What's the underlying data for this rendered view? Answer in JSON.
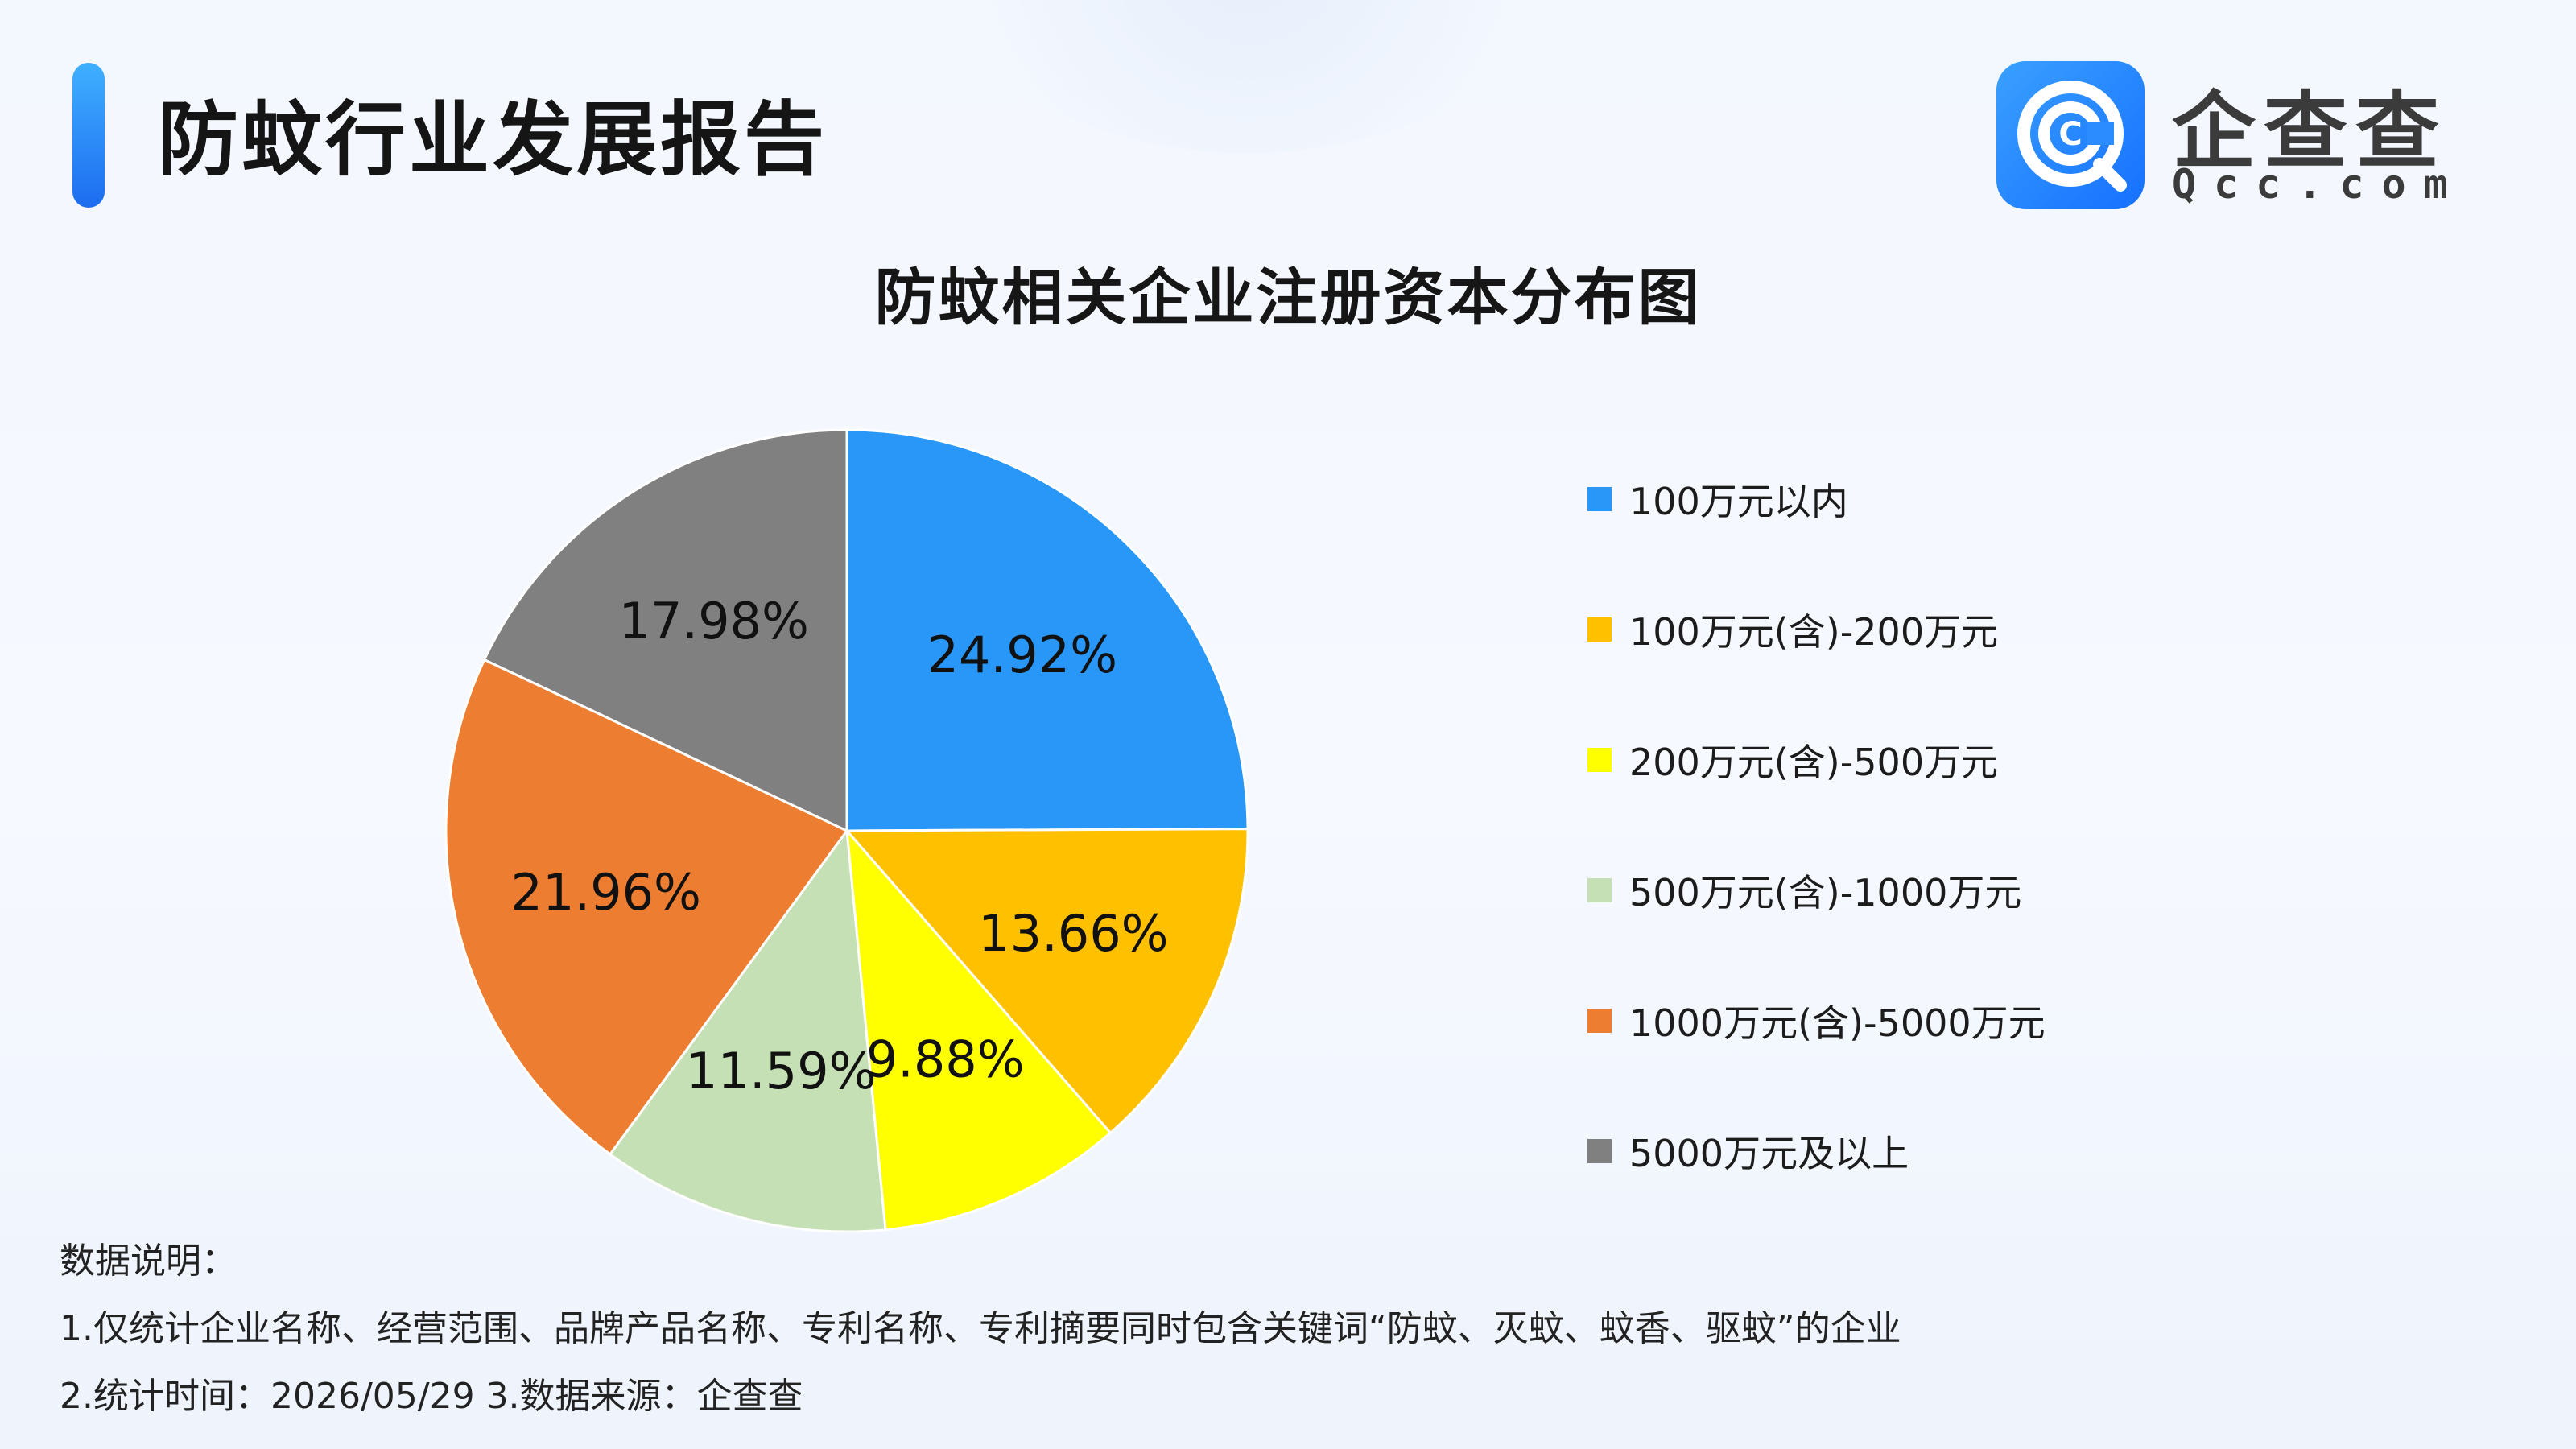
{
  "header": {
    "title": "防蚊行业发展报告"
  },
  "logo": {
    "name": "企查查",
    "domain": "Qcc.com",
    "badge_glyph": "C",
    "icon": "qcc-logo-icon"
  },
  "chart_data": {
    "type": "pie",
    "title": "防蚊相关企业注册资本分布图",
    "categories": [
      "100万元以内",
      "100万元(含)-200万元",
      "200万元(含)-500万元",
      "500万元(含)-1000万元",
      "1000万元(含)-5000万元",
      "5000万元及以上"
    ],
    "values": [
      24.92,
      13.66,
      9.88,
      11.59,
      21.96,
      17.98
    ],
    "value_labels": [
      "24.92%",
      "13.66%",
      "9.88%",
      "11.59%",
      "21.96%",
      "17.98%"
    ],
    "colors": [
      "#2997f8",
      "#ffc000",
      "#ffff00",
      "#c5e0b4",
      "#ed7d31",
      "#808080"
    ],
    "unit": "%",
    "start_angle": "12 o'clock",
    "direction": "clockwise",
    "legend_position": "right"
  },
  "notes": {
    "heading": "数据说明：",
    "line1": "1.仅统计企业名称、经营范围、品牌产品名称、专利名称、专利摘要同时包含关键词“防蚊、灭蚊、蚊香、驱蚊”的企业",
    "line2": "2.统计时间：2026/05/29    3.数据来源：企查查"
  }
}
